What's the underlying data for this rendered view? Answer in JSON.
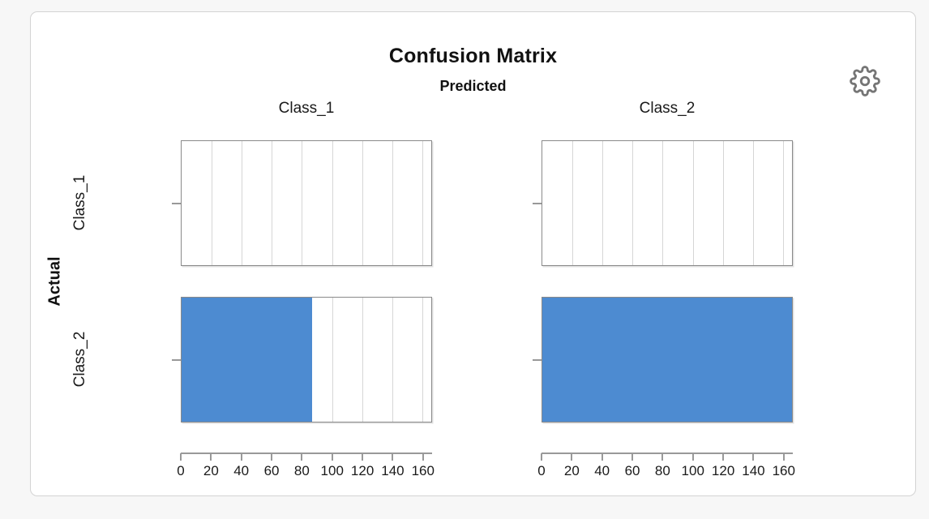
{
  "page": {
    "background": "#f7f7f7"
  },
  "widget": {
    "settings_icon": "gear-icon",
    "settings_icon_color": "#757575",
    "card_border_color": "#d3d3d3"
  },
  "chart_data": {
    "type": "bar",
    "orientation": "horizontal",
    "title": "Confusion Matrix",
    "facet_col_title": "Predicted",
    "facet_row_title": "Actual",
    "col_labels": [
      "Class_1",
      "Class_2"
    ],
    "row_labels": [
      "Class_1",
      "Class_2"
    ],
    "values": [
      [
        0,
        0
      ],
      [
        87,
        166
      ]
    ],
    "x_ticks": [
      0,
      20,
      40,
      60,
      80,
      100,
      120,
      140,
      160
    ],
    "xlim": [
      0,
      166
    ],
    "grid": true,
    "bar_color": "#4d8bd1",
    "gridline_color": "#d6d6d6",
    "axis_color": "#999999",
    "panel_border_color": "#8a8a8a"
  }
}
